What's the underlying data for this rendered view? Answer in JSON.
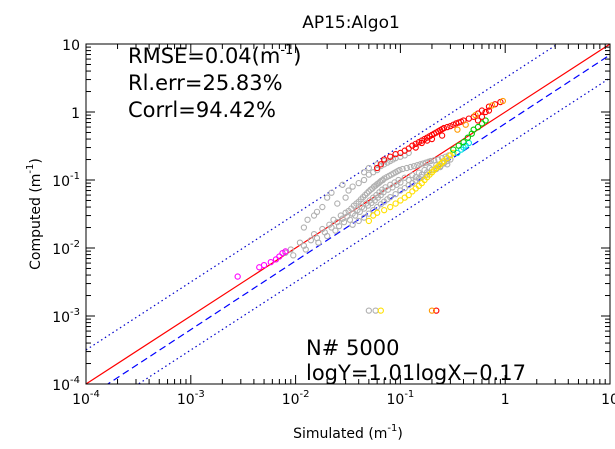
{
  "chart_data": {
    "type": "scatter",
    "title": "AP15:Algo1",
    "xlabel": "Simulated (m",
    "xlabel_sup": "-1",
    "xlabel_end": ")",
    "ylabel": "Computed (m",
    "ylabel_sup": "-1",
    "ylabel_end": ")",
    "x_scale": "log",
    "y_scale": "log",
    "xlim": [
      0.0001,
      10
    ],
    "ylim": [
      0.0001,
      10
    ],
    "x_ticks": [
      {
        "value": 0.0001,
        "base": "10",
        "exp": "-4"
      },
      {
        "value": 0.001,
        "base": "10",
        "exp": "-3"
      },
      {
        "value": 0.01,
        "base": "10",
        "exp": "-2"
      },
      {
        "value": 0.1,
        "base": "10",
        "exp": "-1"
      },
      {
        "value": 1,
        "base": "1",
        "exp": ""
      },
      {
        "value": 10,
        "base": "10",
        "exp": ""
      }
    ],
    "y_ticks": [
      {
        "value": 0.0001,
        "base": "10",
        "exp": "-4"
      },
      {
        "value": 0.001,
        "base": "10",
        "exp": "-3"
      },
      {
        "value": 0.01,
        "base": "10",
        "exp": "-2"
      },
      {
        "value": 0.1,
        "base": "10",
        "exp": "-1"
      },
      {
        "value": 1,
        "base": "1",
        "exp": ""
      },
      {
        "value": 10,
        "base": "10",
        "exp": ""
      }
    ],
    "stats": {
      "rmse_prefix": "RMSE=0.04(m",
      "rmse_sup": "-1",
      "rmse_suffix": ")",
      "rel_err": "Rl.err=25.83%",
      "corr": "Corrl=94.42%",
      "n": "N# 5000",
      "fit": "logY=1.01logX−0.17"
    },
    "lines": [
      {
        "type": "1:1",
        "color": "#ff0000",
        "style": "solid",
        "offset_log": 0
      },
      {
        "type": "regression",
        "color": "#0000ff",
        "style": "dashed",
        "slope": 1.01,
        "intercept": -0.17
      },
      {
        "type": "bound-upper",
        "color": "#0000cc",
        "style": "dotted",
        "offset_log": 0.5
      },
      {
        "type": "bound-lower",
        "color": "#0000cc",
        "style": "dotted",
        "offset_log": -0.5
      }
    ],
    "series": [
      {
        "color": "#b0b0b0",
        "points": [
          [
            0.008,
            0.0085
          ],
          [
            0.009,
            0.0095
          ],
          [
            0.0095,
            0.0078
          ],
          [
            0.011,
            0.012
          ],
          [
            0.012,
            0.0108
          ],
          [
            0.0125,
            0.0095
          ],
          [
            0.014,
            0.013
          ],
          [
            0.015,
            0.016
          ],
          [
            0.016,
            0.014
          ],
          [
            0.0165,
            0.012
          ],
          [
            0.018,
            0.019
          ],
          [
            0.019,
            0.017
          ],
          [
            0.02,
            0.015
          ],
          [
            0.021,
            0.022
          ],
          [
            0.022,
            0.02
          ],
          [
            0.023,
            0.026
          ],
          [
            0.024,
            0.018
          ],
          [
            0.025,
            0.024
          ],
          [
            0.026,
            0.021
          ],
          [
            0.027,
            0.03
          ],
          [
            0.028,
            0.027
          ],
          [
            0.029,
            0.024
          ],
          [
            0.03,
            0.033
          ],
          [
            0.031,
            0.029
          ],
          [
            0.032,
            0.035
          ],
          [
            0.033,
            0.026
          ],
          [
            0.034,
            0.038
          ],
          [
            0.035,
            0.032
          ],
          [
            0.036,
            0.042
          ],
          [
            0.037,
            0.03
          ],
          [
            0.038,
            0.045
          ],
          [
            0.039,
            0.036
          ],
          [
            0.04,
            0.048
          ],
          [
            0.041,
            0.034
          ],
          [
            0.042,
            0.052
          ],
          [
            0.043,
            0.04
          ],
          [
            0.044,
            0.056
          ],
          [
            0.045,
            0.038
          ],
          [
            0.046,
            0.06
          ],
          [
            0.047,
            0.045
          ],
          [
            0.048,
            0.064
          ],
          [
            0.049,
            0.042
          ],
          [
            0.05,
            0.068
          ],
          [
            0.051,
            0.05
          ],
          [
            0.052,
            0.072
          ],
          [
            0.053,
            0.046
          ],
          [
            0.054,
            0.075
          ],
          [
            0.055,
            0.055
          ],
          [
            0.056,
            0.08
          ],
          [
            0.057,
            0.05
          ],
          [
            0.058,
            0.083
          ],
          [
            0.059,
            0.06
          ],
          [
            0.06,
            0.087
          ],
          [
            0.061,
            0.055
          ],
          [
            0.062,
            0.09
          ],
          [
            0.063,
            0.066
          ],
          [
            0.064,
            0.094
          ],
          [
            0.065,
            0.06
          ],
          [
            0.066,
            0.098
          ],
          [
            0.067,
            0.072
          ],
          [
            0.068,
            0.1
          ],
          [
            0.069,
            0.066
          ],
          [
            0.07,
            0.105
          ],
          [
            0.072,
            0.078
          ],
          [
            0.074,
            0.11
          ],
          [
            0.076,
            0.072
          ],
          [
            0.078,
            0.115
          ],
          [
            0.08,
            0.085
          ],
          [
            0.082,
            0.12
          ],
          [
            0.084,
            0.078
          ],
          [
            0.086,
            0.125
          ],
          [
            0.088,
            0.092
          ],
          [
            0.09,
            0.13
          ],
          [
            0.092,
            0.085
          ],
          [
            0.094,
            0.135
          ],
          [
            0.096,
            0.1
          ],
          [
            0.098,
            0.14
          ],
          [
            0.1,
            0.092
          ],
          [
            0.105,
            0.145
          ],
          [
            0.11,
            0.108
          ],
          [
            0.115,
            0.15
          ],
          [
            0.12,
            0.1
          ],
          [
            0.125,
            0.155
          ],
          [
            0.13,
            0.118
          ],
          [
            0.135,
            0.16
          ],
          [
            0.14,
            0.11
          ],
          [
            0.145,
            0.165
          ],
          [
            0.15,
            0.128
          ],
          [
            0.155,
            0.17
          ],
          [
            0.16,
            0.12
          ],
          [
            0.165,
            0.175
          ],
          [
            0.17,
            0.14
          ],
          [
            0.175,
            0.18
          ],
          [
            0.18,
            0.13
          ],
          [
            0.185,
            0.185
          ],
          [
            0.19,
            0.15
          ],
          [
            0.195,
            0.19
          ],
          [
            0.2,
            0.142
          ],
          [
            0.21,
            0.195
          ],
          [
            0.22,
            0.165
          ],
          [
            0.23,
            0.2
          ],
          [
            0.24,
            0.155
          ],
          [
            0.25,
            0.21
          ],
          [
            0.26,
            0.18
          ],
          [
            0.27,
            0.22
          ],
          [
            0.28,
            0.17
          ],
          [
            0.29,
            0.23
          ],
          [
            0.3,
            0.2
          ],
          [
            0.025,
            0.045
          ],
          [
            0.03,
            0.055
          ],
          [
            0.032,
            0.07
          ],
          [
            0.035,
            0.08
          ],
          [
            0.04,
            0.09
          ],
          [
            0.045,
            0.1
          ],
          [
            0.05,
            0.12
          ],
          [
            0.055,
            0.13
          ],
          [
            0.06,
            0.14
          ],
          [
            0.065,
            0.16
          ],
          [
            0.07,
            0.17
          ],
          [
            0.075,
            0.18
          ],
          [
            0.08,
            0.19
          ],
          [
            0.085,
            0.2
          ],
          [
            0.09,
            0.21
          ],
          [
            0.1,
            0.22
          ],
          [
            0.11,
            0.23
          ],
          [
            0.12,
            0.25
          ],
          [
            0.02,
            0.055
          ],
          [
            0.018,
            0.04
          ],
          [
            0.015,
            0.03
          ],
          [
            0.022,
            0.065
          ],
          [
            0.028,
            0.085
          ],
          [
            0.045,
            0.13
          ],
          [
            0.05,
            0.15
          ],
          [
            0.06,
            0.17
          ],
          [
            0.07,
            0.19
          ],
          [
            0.012,
            0.02
          ],
          [
            0.013,
            0.026
          ],
          [
            0.016,
            0.034
          ],
          [
            0.035,
            0.022
          ],
          [
            0.04,
            0.025
          ],
          [
            0.045,
            0.028
          ],
          [
            0.05,
            0.032
          ],
          [
            0.055,
            0.036
          ],
          [
            0.06,
            0.04
          ],
          [
            0.065,
            0.044
          ],
          [
            0.07,
            0.048
          ],
          [
            0.075,
            0.052
          ],
          [
            0.08,
            0.056
          ],
          [
            0.09,
            0.062
          ],
          [
            0.1,
            0.07
          ],
          [
            0.11,
            0.076
          ],
          [
            0.12,
            0.084
          ],
          [
            0.13,
            0.09
          ],
          [
            0.14,
            0.098
          ],
          [
            0.15,
            0.105
          ],
          [
            0.16,
            0.11
          ],
          [
            0.18,
            0.12
          ],
          [
            0.2,
            0.13
          ],
          [
            0.22,
            0.145
          ],
          [
            0.24,
            0.16
          ],
          [
            0.26,
            0.175
          ],
          [
            0.28,
            0.19
          ],
          [
            0.05,
            0.0012
          ],
          [
            0.058,
            0.0012
          ]
        ]
      },
      {
        "color": "#ff00ff",
        "points": [
          [
            0.0028,
            0.0038
          ],
          [
            0.0045,
            0.0052
          ],
          [
            0.005,
            0.0056
          ],
          [
            0.0058,
            0.0062
          ],
          [
            0.0065,
            0.0068
          ],
          [
            0.007,
            0.0075
          ],
          [
            0.0075,
            0.0084
          ],
          [
            0.008,
            0.0089
          ]
        ]
      },
      {
        "color": "#ffe000",
        "points": [
          [
            0.05,
            0.025
          ],
          [
            0.055,
            0.03
          ],
          [
            0.06,
            0.033
          ],
          [
            0.07,
            0.036
          ],
          [
            0.08,
            0.04
          ],
          [
            0.09,
            0.045
          ],
          [
            0.1,
            0.05
          ],
          [
            0.11,
            0.055
          ],
          [
            0.12,
            0.06
          ],
          [
            0.13,
            0.068
          ],
          [
            0.14,
            0.075
          ],
          [
            0.15,
            0.082
          ],
          [
            0.16,
            0.09
          ],
          [
            0.17,
            0.1
          ],
          [
            0.18,
            0.11
          ],
          [
            0.19,
            0.12
          ],
          [
            0.2,
            0.13
          ],
          [
            0.21,
            0.14
          ],
          [
            0.22,
            0.15
          ],
          [
            0.23,
            0.16
          ],
          [
            0.24,
            0.17
          ],
          [
            0.25,
            0.18
          ],
          [
            0.26,
            0.19
          ],
          [
            0.28,
            0.21
          ],
          [
            0.3,
            0.23
          ],
          [
            0.32,
            0.25
          ],
          [
            0.065,
            0.0012
          ]
        ]
      },
      {
        "color": "#00e0e0",
        "points": [
          [
            0.35,
            0.25
          ],
          [
            0.38,
            0.28
          ],
          [
            0.4,
            0.3
          ],
          [
            0.42,
            0.32
          ],
          [
            0.45,
            0.35
          ]
        ]
      },
      {
        "color": "#00cc00",
        "points": [
          [
            0.32,
            0.28
          ],
          [
            0.36,
            0.32
          ],
          [
            0.4,
            0.36
          ],
          [
            0.44,
            0.42
          ],
          [
            0.48,
            0.48
          ],
          [
            0.5,
            0.55
          ],
          [
            0.55,
            0.6
          ],
          [
            0.6,
            0.68
          ],
          [
            0.65,
            0.75
          ]
        ]
      },
      {
        "color": "#ff0000",
        "points": [
          [
            0.1,
            0.25
          ],
          [
            0.11,
            0.27
          ],
          [
            0.12,
            0.29
          ],
          [
            0.13,
            0.32
          ],
          [
            0.14,
            0.34
          ],
          [
            0.15,
            0.36
          ],
          [
            0.16,
            0.38
          ],
          [
            0.17,
            0.4
          ],
          [
            0.18,
            0.42
          ],
          [
            0.19,
            0.44
          ],
          [
            0.2,
            0.46
          ],
          [
            0.21,
            0.48
          ],
          [
            0.22,
            0.5
          ],
          [
            0.23,
            0.52
          ],
          [
            0.24,
            0.54
          ],
          [
            0.25,
            0.56
          ],
          [
            0.26,
            0.58
          ],
          [
            0.28,
            0.6
          ],
          [
            0.3,
            0.62
          ],
          [
            0.32,
            0.65
          ],
          [
            0.34,
            0.68
          ],
          [
            0.36,
            0.7
          ],
          [
            0.38,
            0.72
          ],
          [
            0.4,
            0.75
          ],
          [
            0.45,
            0.8
          ],
          [
            0.5,
            0.85
          ],
          [
            0.06,
            0.15
          ],
          [
            0.065,
            0.17
          ],
          [
            0.07,
            0.2
          ],
          [
            0.08,
            0.22
          ],
          [
            0.09,
            0.24
          ],
          [
            0.14,
            0.3
          ],
          [
            0.16,
            0.35
          ],
          [
            0.18,
            0.38
          ],
          [
            0.2,
            0.4
          ],
          [
            0.25,
            0.45
          ],
          [
            0.55,
            0.95
          ],
          [
            0.6,
            1.05
          ],
          [
            0.7,
            1.2
          ],
          [
            0.8,
            1.3
          ],
          [
            0.9,
            1.4
          ],
          [
            0.55,
            0.75
          ],
          [
            0.6,
            0.85
          ],
          [
            0.65,
            1.0
          ],
          [
            0.7,
            1.05
          ],
          [
            0.22,
            0.0012
          ]
        ]
      },
      {
        "color": "#ff9900",
        "points": [
          [
            0.2,
            0.0012
          ],
          [
            0.35,
            0.55
          ],
          [
            0.42,
            0.65
          ],
          [
            0.52,
            0.9
          ],
          [
            0.75,
            1.25
          ],
          [
            0.95,
            1.45
          ]
        ]
      }
    ]
  }
}
